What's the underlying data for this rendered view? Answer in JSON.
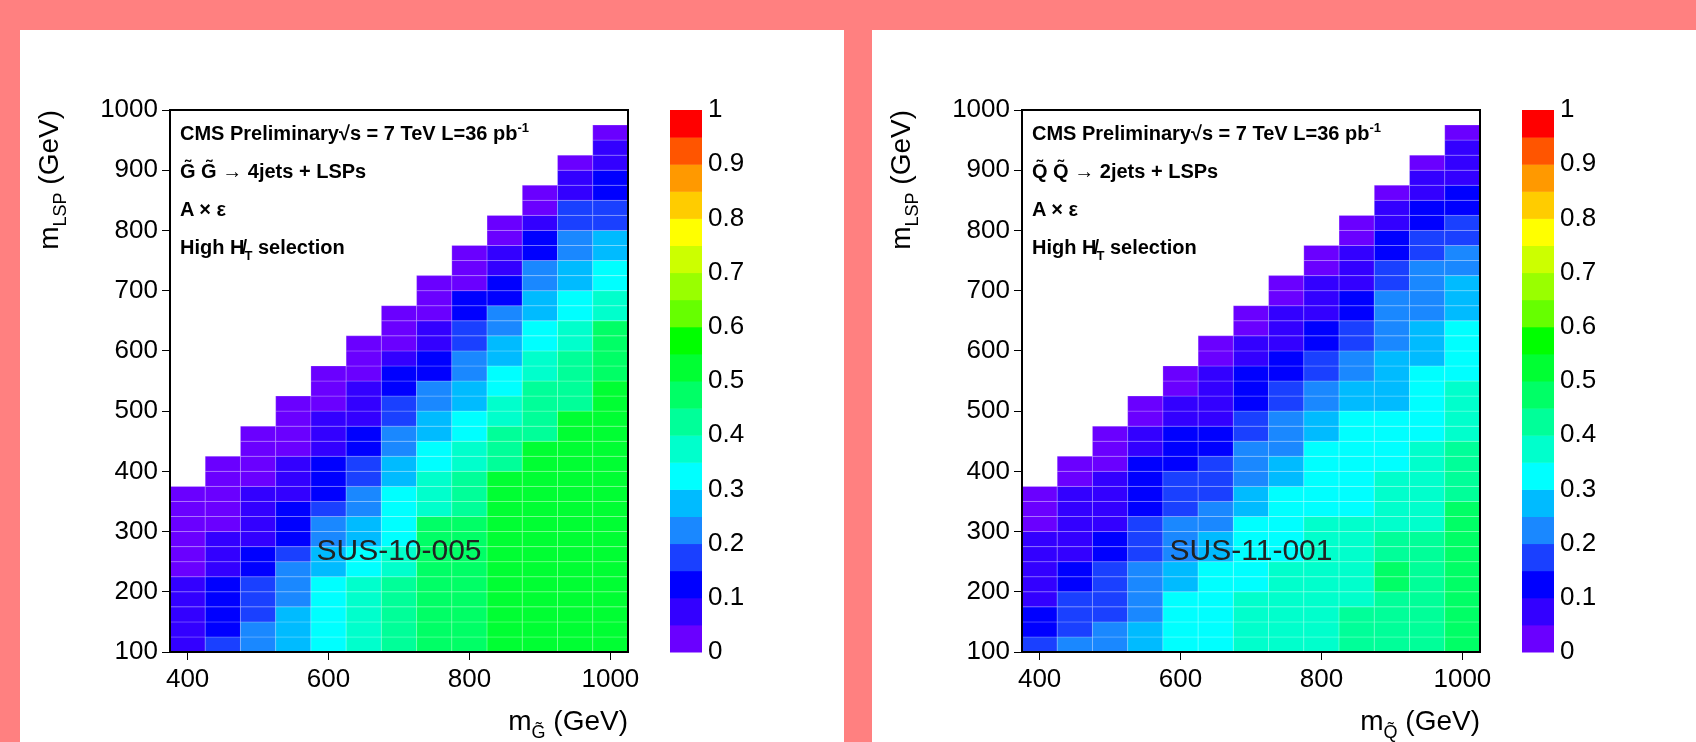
{
  "chart_data": [
    {
      "type": "scatter",
      "marker": "square",
      "xlabel": "m$_{G̃}$ (GeV)",
      "ylabel": "m$_{LSP}$ (GeV)",
      "annotations": [
        "CMS Preliminary√s = 7 TeV L=36 pb$^{-1}$",
        "G̃ G̃ → 4jets + LSPs",
        "A × ε",
        "High H̸$_{T}$ selection",
        "SUS-10-005"
      ],
      "xlim": [
        375,
        1025
      ],
      "ylim": [
        100,
        1000
      ],
      "xticks": [
        400,
        600,
        800,
        1000
      ],
      "yticks": [
        100,
        200,
        300,
        400,
        500,
        600,
        700,
        800,
        900,
        1000
      ],
      "clim": [
        0,
        1
      ],
      "cticks": [
        0,
        0.1,
        0.2,
        0.3,
        0.4,
        0.5,
        0.6,
        0.7,
        0.8,
        0.9,
        1
      ],
      "x": [
        400,
        400,
        400,
        400,
        400,
        400,
        400,
        400,
        400,
        400,
        400,
        450,
        450,
        450,
        450,
        450,
        450,
        450,
        450,
        450,
        450,
        450,
        450,
        450,
        500,
        500,
        500,
        500,
        500,
        500,
        500,
        500,
        500,
        500,
        500,
        500,
        500,
        500,
        500,
        550,
        550,
        550,
        550,
        550,
        550,
        550,
        550,
        550,
        550,
        550,
        550,
        550,
        550,
        550,
        550,
        550,
        600,
        600,
        600,
        600,
        600,
        600,
        600,
        600,
        600,
        600,
        600,
        600,
        600,
        600,
        600,
        600,
        600,
        600,
        600,
        650,
        650,
        650,
        650,
        650,
        650,
        650,
        650,
        650,
        650,
        650,
        650,
        650,
        650,
        650,
        650,
        650,
        650,
        650,
        650,
        650,
        700,
        700,
        700,
        700,
        700,
        700,
        700,
        700,
        700,
        700,
        700,
        700,
        700,
        700,
        700,
        700,
        700,
        700,
        700,
        700,
        700,
        700,
        700,
        750,
        750,
        750,
        750,
        750,
        750,
        750,
        750,
        750,
        750,
        750,
        750,
        750,
        750,
        750,
        750,
        750,
        750,
        750,
        750,
        750,
        750,
        750,
        750,
        750,
        800,
        800,
        800,
        800,
        800,
        800,
        800,
        800,
        800,
        800,
        800,
        800,
        800,
        800,
        800,
        800,
        800,
        800,
        800,
        800,
        800,
        800,
        800,
        800,
        800,
        800,
        800,
        850,
        850,
        850,
        850,
        850,
        850,
        850,
        850,
        850,
        850,
        850,
        850,
        850,
        850,
        850,
        850,
        850,
        850,
        850,
        850,
        850,
        850,
        850,
        850,
        850,
        850,
        850,
        850,
        850,
        900,
        900,
        900,
        900,
        900,
        900,
        900,
        900,
        900,
        900,
        900,
        900,
        900,
        900,
        900,
        900,
        900,
        900,
        900,
        900,
        900,
        900,
        900,
        900,
        900,
        900,
        900,
        900,
        900,
        900,
        900,
        950,
        950,
        950,
        950,
        950,
        950,
        950,
        950,
        950,
        950,
        950,
        950,
        950,
        950,
        950,
        950,
        950,
        950,
        950,
        950,
        950,
        950,
        950,
        950,
        950,
        950,
        950,
        950,
        950,
        950,
        950,
        950,
        950,
        1000,
        1000,
        1000,
        1000,
        1000,
        1000,
        1000,
        1000,
        1000,
        1000,
        1000,
        1000,
        1000,
        1000,
        1000,
        1000,
        1000,
        1000,
        1000,
        1000,
        1000,
        1000,
        1000,
        1000,
        1000,
        1000,
        1000,
        1000,
        1000,
        1000,
        1000,
        1000,
        1000,
        1000,
        1000
      ],
      "values": [
        112.5,
        137.5,
        162.5,
        187.5,
        212.5,
        237.5,
        262.5,
        287.5,
        312.5,
        337.5,
        362.5,
        112.5,
        137.5,
        162.5,
        187.5,
        212.5,
        237.5,
        262.5,
        287.5,
        312.5,
        337.5,
        362.5,
        387.5,
        412.5,
        112.5,
        137.5,
        162.5,
        187.5,
        212.5,
        237.5,
        262.5,
        287.5,
        312.5,
        337.5,
        362.5,
        387.5,
        412.5,
        437.5,
        462.5,
        112.5,
        137.5,
        162.5,
        187.5,
        212.5,
        237.5,
        262.5,
        287.5,
        312.5,
        337.5,
        362.5,
        387.5,
        412.5,
        437.5,
        462.5,
        487.5,
        512.5,
        112.5,
        137.5,
        162.5,
        187.5,
        212.5,
        237.5,
        262.5,
        287.5,
        312.5,
        337.5,
        362.5,
        387.5,
        412.5,
        437.5,
        462.5,
        487.5,
        512.5,
        537.5,
        562.5,
        112.5,
        137.5,
        162.5,
        187.5,
        212.5,
        237.5,
        262.5,
        287.5,
        312.5,
        337.5,
        362.5,
        387.5,
        412.5,
        437.5,
        462.5,
        487.5,
        512.5,
        537.5,
        562.5,
        587.5,
        612.5,
        112.5,
        137.5,
        162.5,
        187.5,
        212.5,
        237.5,
        262.5,
        287.5,
        312.5,
        337.5,
        362.5,
        387.5,
        412.5,
        437.5,
        462.5,
        487.5,
        512.5,
        537.5,
        562.5,
        587.5,
        612.5,
        637.5,
        662.5,
        112.5,
        137.5,
        162.5,
        187.5,
        212.5,
        237.5,
        262.5,
        287.5,
        312.5,
        337.5,
        362.5,
        387.5,
        412.5,
        437.5,
        462.5,
        487.5,
        512.5,
        537.5,
        562.5,
        587.5,
        612.5,
        637.5,
        662.5,
        687.5,
        712.5,
        112.5,
        137.5,
        162.5,
        187.5,
        212.5,
        237.5,
        262.5,
        287.5,
        312.5,
        337.5,
        362.5,
        387.5,
        412.5,
        437.5,
        462.5,
        487.5,
        512.5,
        537.5,
        562.5,
        587.5,
        612.5,
        637.5,
        662.5,
        687.5,
        712.5,
        737.5,
        762.5,
        112.5,
        137.5,
        162.5,
        187.5,
        212.5,
        237.5,
        262.5,
        287.5,
        312.5,
        337.5,
        362.5,
        387.5,
        412.5,
        437.5,
        462.5,
        487.5,
        512.5,
        537.5,
        562.5,
        587.5,
        612.5,
        637.5,
        662.5,
        687.5,
        712.5,
        737.5,
        762.5,
        787.5,
        812.5,
        112.5,
        137.5,
        162.5,
        187.5,
        212.5,
        237.5,
        262.5,
        287.5,
        312.5,
        337.5,
        362.5,
        387.5,
        412.5,
        437.5,
        462.5,
        487.5,
        512.5,
        537.5,
        562.5,
        587.5,
        612.5,
        637.5,
        662.5,
        687.5,
        712.5,
        737.5,
        762.5,
        787.5,
        812.5,
        837.5,
        862.5,
        112.5,
        137.5,
        162.5,
        187.5,
        212.5,
        237.5,
        262.5,
        287.5,
        312.5,
        337.5,
        362.5,
        387.5,
        412.5,
        437.5,
        462.5,
        487.5,
        512.5,
        537.5,
        562.5,
        587.5,
        612.5,
        637.5,
        662.5,
        687.5,
        712.5,
        737.5,
        762.5,
        787.5,
        812.5,
        837.5,
        862.5,
        887.5,
        912.5,
        112.5,
        137.5,
        162.5,
        187.5,
        212.5,
        237.5,
        262.5,
        287.5,
        312.5,
        337.5,
        362.5,
        387.5,
        412.5,
        437.5,
        462.5,
        487.5,
        512.5,
        537.5,
        562.5,
        587.5,
        612.5,
        637.5,
        662.5,
        687.5,
        712.5,
        737.5,
        762.5,
        787.5,
        812.5,
        837.5,
        862.5,
        887.5,
        912.5,
        937.5,
        962.5
      ],
      "cvalues": [
        0.075,
        0.075,
        0.075,
        0.075,
        0.075,
        0.025,
        0.025,
        0.025,
        0.025,
        0.025,
        0.025,
        0.175,
        0.125,
        0.125,
        0.125,
        0.125,
        0.075,
        0.075,
        0.075,
        0.025,
        0.025,
        0.025,
        0.025,
        0.025,
        0.225,
        0.225,
        0.175,
        0.175,
        0.175,
        0.125,
        0.125,
        0.075,
        0.075,
        0.075,
        0.075,
        0.025,
        0.025,
        0.025,
        0.025,
        0.275,
        0.275,
        0.275,
        0.225,
        0.225,
        0.225,
        0.175,
        0.125,
        0.125,
        0.125,
        0.075,
        0.075,
        0.075,
        0.025,
        0.025,
        0.025,
        0.025,
        0.325,
        0.325,
        0.325,
        0.325,
        0.325,
        0.275,
        0.275,
        0.225,
        0.225,
        0.175,
        0.125,
        0.125,
        0.125,
        0.075,
        0.075,
        0.075,
        0.025,
        0.025,
        0.025,
        0.375,
        0.375,
        0.375,
        0.375,
        0.375,
        0.325,
        0.325,
        0.275,
        0.275,
        0.225,
        0.225,
        0.175,
        0.175,
        0.125,
        0.125,
        0.075,
        0.075,
        0.075,
        0.025,
        0.025,
        0.025,
        0.425,
        0.425,
        0.425,
        0.425,
        0.425,
        0.375,
        0.375,
        0.325,
        0.325,
        0.325,
        0.325,
        0.275,
        0.275,
        0.225,
        0.225,
        0.175,
        0.175,
        0.125,
        0.125,
        0.075,
        0.025,
        0.025,
        0.025,
        0.475,
        0.475,
        0.475,
        0.475,
        0.475,
        0.475,
        0.475,
        0.475,
        0.475,
        0.375,
        0.375,
        0.375,
        0.325,
        0.325,
        0.275,
        0.275,
        0.225,
        0.225,
        0.125,
        0.125,
        0.075,
        0.075,
        0.025,
        0.025,
        0.025,
        0.475,
        0.475,
        0.475,
        0.475,
        0.475,
        0.475,
        0.475,
        0.475,
        0.475,
        0.425,
        0.425,
        0.425,
        0.375,
        0.375,
        0.325,
        0.325,
        0.275,
        0.275,
        0.225,
        0.225,
        0.175,
        0.175,
        0.125,
        0.125,
        0.025,
        0.025,
        0.025,
        0.525,
        0.525,
        0.525,
        0.525,
        0.525,
        0.525,
        0.525,
        0.525,
        0.525,
        0.525,
        0.525,
        0.525,
        0.425,
        0.425,
        0.425,
        0.375,
        0.375,
        0.325,
        0.325,
        0.275,
        0.275,
        0.225,
        0.225,
        0.125,
        0.125,
        0.075,
        0.075,
        0.025,
        0.025,
        0.525,
        0.525,
        0.525,
        0.525,
        0.525,
        0.525,
        0.525,
        0.525,
        0.525,
        0.525,
        0.525,
        0.525,
        0.525,
        0.525,
        0.425,
        0.425,
        0.425,
        0.425,
        0.375,
        0.375,
        0.325,
        0.325,
        0.275,
        0.275,
        0.225,
        0.225,
        0.125,
        0.125,
        0.075,
        0.025,
        0.025,
        0.525,
        0.525,
        0.525,
        0.525,
        0.525,
        0.525,
        0.525,
        0.525,
        0.525,
        0.525,
        0.525,
        0.525,
        0.525,
        0.525,
        0.525,
        0.525,
        0.425,
        0.425,
        0.425,
        0.425,
        0.375,
        0.375,
        0.325,
        0.325,
        0.275,
        0.275,
        0.225,
        0.225,
        0.175,
        0.175,
        0.075,
        0.075,
        0.025,
        0.525,
        0.525,
        0.525,
        0.525,
        0.525,
        0.525,
        0.525,
        0.525,
        0.525,
        0.525,
        0.525,
        0.525,
        0.525,
        0.525,
        0.525,
        0.525,
        0.525,
        0.525,
        0.475,
        0.475,
        0.475,
        0.475,
        0.375,
        0.375,
        0.325,
        0.325,
        0.275,
        0.275,
        0.175,
        0.175,
        0.125,
        0.125,
        0.075,
        0.075,
        0.025
      ]
    },
    {
      "type": "scatter",
      "marker": "square",
      "xlabel": "m$_{Q̃}$ (GeV)",
      "ylabel": "m$_{LSP}$ (GeV)",
      "annotations": [
        "CMS Preliminary√s = 7 TeV L=36 pb$^{-1}$",
        "Q̃ Q̃ → 2jets + LSPs",
        "A × ε",
        "High H̸$_{T}$ selection",
        "SUS-11-001"
      ],
      "xlim": [
        375,
        1025
      ],
      "ylim": [
        100,
        1000
      ],
      "xticks": [
        400,
        600,
        800,
        1000
      ],
      "yticks": [
        100,
        200,
        300,
        400,
        500,
        600,
        700,
        800,
        900,
        1000
      ],
      "clim": [
        0,
        1
      ],
      "cticks": [
        0,
        0.1,
        0.2,
        0.3,
        0.4,
        0.5,
        0.6,
        0.7,
        0.8,
        0.9,
        1
      ],
      "x": [
        400,
        400,
        400,
        400,
        400,
        400,
        400,
        400,
        400,
        400,
        400,
        450,
        450,
        450,
        450,
        450,
        450,
        450,
        450,
        450,
        450,
        450,
        450,
        450,
        500,
        500,
        500,
        500,
        500,
        500,
        500,
        500,
        500,
        500,
        500,
        500,
        500,
        500,
        500,
        550,
        550,
        550,
        550,
        550,
        550,
        550,
        550,
        550,
        550,
        550,
        550,
        550,
        550,
        550,
        550,
        550,
        600,
        600,
        600,
        600,
        600,
        600,
        600,
        600,
        600,
        600,
        600,
        600,
        600,
        600,
        600,
        600,
        600,
        600,
        600,
        650,
        650,
        650,
        650,
        650,
        650,
        650,
        650,
        650,
        650,
        650,
        650,
        650,
        650,
        650,
        650,
        650,
        650,
        650,
        650,
        650,
        700,
        700,
        700,
        700,
        700,
        700,
        700,
        700,
        700,
        700,
        700,
        700,
        700,
        700,
        700,
        700,
        700,
        700,
        700,
        700,
        700,
        700,
        700,
        750,
        750,
        750,
        750,
        750,
        750,
        750,
        750,
        750,
        750,
        750,
        750,
        750,
        750,
        750,
        750,
        750,
        750,
        750,
        750,
        750,
        750,
        750,
        750,
        750,
        800,
        800,
        800,
        800,
        800,
        800,
        800,
        800,
        800,
        800,
        800,
        800,
        800,
        800,
        800,
        800,
        800,
        800,
        800,
        800,
        800,
        800,
        800,
        800,
        800,
        800,
        800,
        850,
        850,
        850,
        850,
        850,
        850,
        850,
        850,
        850,
        850,
        850,
        850,
        850,
        850,
        850,
        850,
        850,
        850,
        850,
        850,
        850,
        850,
        850,
        850,
        850,
        850,
        850,
        850,
        850,
        900,
        900,
        900,
        900,
        900,
        900,
        900,
        900,
        900,
        900,
        900,
        900,
        900,
        900,
        900,
        900,
        900,
        900,
        900,
        900,
        900,
        900,
        900,
        900,
        900,
        900,
        900,
        900,
        900,
        900,
        900,
        950,
        950,
        950,
        950,
        950,
        950,
        950,
        950,
        950,
        950,
        950,
        950,
        950,
        950,
        950,
        950,
        950,
        950,
        950,
        950,
        950,
        950,
        950,
        950,
        950,
        950,
        950,
        950,
        950,
        950,
        950,
        950,
        950,
        1000,
        1000,
        1000,
        1000,
        1000,
        1000,
        1000,
        1000,
        1000,
        1000,
        1000,
        1000,
        1000,
        1000,
        1000,
        1000,
        1000,
        1000,
        1000,
        1000,
        1000,
        1000,
        1000,
        1000,
        1000,
        1000,
        1000,
        1000,
        1000,
        1000,
        1000,
        1000,
        1000,
        1000,
        1000
      ],
      "values": [
        112.5,
        137.5,
        162.5,
        187.5,
        212.5,
        237.5,
        262.5,
        287.5,
        312.5,
        337.5,
        362.5,
        112.5,
        137.5,
        162.5,
        187.5,
        212.5,
        237.5,
        262.5,
        287.5,
        312.5,
        337.5,
        362.5,
        387.5,
        412.5,
        112.5,
        137.5,
        162.5,
        187.5,
        212.5,
        237.5,
        262.5,
        287.5,
        312.5,
        337.5,
        362.5,
        387.5,
        412.5,
        437.5,
        462.5,
        112.5,
        137.5,
        162.5,
        187.5,
        212.5,
        237.5,
        262.5,
        287.5,
        312.5,
        337.5,
        362.5,
        387.5,
        412.5,
        437.5,
        462.5,
        487.5,
        512.5,
        112.5,
        137.5,
        162.5,
        187.5,
        212.5,
        237.5,
        262.5,
        287.5,
        312.5,
        337.5,
        362.5,
        387.5,
        412.5,
        437.5,
        462.5,
        487.5,
        512.5,
        537.5,
        562.5,
        112.5,
        137.5,
        162.5,
        187.5,
        212.5,
        237.5,
        262.5,
        287.5,
        312.5,
        337.5,
        362.5,
        387.5,
        412.5,
        437.5,
        462.5,
        487.5,
        512.5,
        537.5,
        562.5,
        587.5,
        612.5,
        112.5,
        137.5,
        162.5,
        187.5,
        212.5,
        237.5,
        262.5,
        287.5,
        312.5,
        337.5,
        362.5,
        387.5,
        412.5,
        437.5,
        462.5,
        487.5,
        512.5,
        537.5,
        562.5,
        587.5,
        612.5,
        637.5,
        662.5,
        112.5,
        137.5,
        162.5,
        187.5,
        212.5,
        237.5,
        262.5,
        287.5,
        312.5,
        337.5,
        362.5,
        387.5,
        412.5,
        437.5,
        462.5,
        487.5,
        512.5,
        537.5,
        562.5,
        587.5,
        612.5,
        637.5,
        662.5,
        687.5,
        712.5,
        112.5,
        137.5,
        162.5,
        187.5,
        212.5,
        237.5,
        262.5,
        287.5,
        312.5,
        337.5,
        362.5,
        387.5,
        412.5,
        437.5,
        462.5,
        487.5,
        512.5,
        537.5,
        562.5,
        587.5,
        612.5,
        637.5,
        662.5,
        687.5,
        712.5,
        737.5,
        762.5,
        112.5,
        137.5,
        162.5,
        187.5,
        212.5,
        237.5,
        262.5,
        287.5,
        312.5,
        337.5,
        362.5,
        387.5,
        412.5,
        437.5,
        462.5,
        487.5,
        512.5,
        537.5,
        562.5,
        587.5,
        612.5,
        637.5,
        662.5,
        687.5,
        712.5,
        737.5,
        762.5,
        787.5,
        812.5,
        112.5,
        137.5,
        162.5,
        187.5,
        212.5,
        237.5,
        262.5,
        287.5,
        312.5,
        337.5,
        362.5,
        387.5,
        412.5,
        437.5,
        462.5,
        487.5,
        512.5,
        537.5,
        562.5,
        587.5,
        612.5,
        637.5,
        662.5,
        687.5,
        712.5,
        737.5,
        762.5,
        787.5,
        812.5,
        837.5,
        862.5,
        112.5,
        137.5,
        162.5,
        187.5,
        212.5,
        237.5,
        262.5,
        287.5,
        312.5,
        337.5,
        362.5,
        387.5,
        412.5,
        437.5,
        462.5,
        487.5,
        512.5,
        537.5,
        562.5,
        587.5,
        612.5,
        637.5,
        662.5,
        687.5,
        712.5,
        737.5,
        762.5,
        787.5,
        812.5,
        837.5,
        862.5,
        887.5,
        912.5,
        112.5,
        137.5,
        162.5,
        187.5,
        212.5,
        237.5,
        262.5,
        287.5,
        312.5,
        337.5,
        362.5,
        387.5,
        412.5,
        437.5,
        462.5,
        487.5,
        512.5,
        537.5,
        562.5,
        587.5,
        612.5,
        637.5,
        662.5,
        687.5,
        712.5,
        737.5,
        762.5,
        787.5,
        812.5,
        837.5,
        862.5,
        887.5,
        912.5,
        937.5,
        962.5
      ],
      "cvalues": [
        0.175,
        0.125,
        0.125,
        0.075,
        0.075,
        0.075,
        0.075,
        0.075,
        0.025,
        0.025,
        0.025,
        0.225,
        0.175,
        0.175,
        0.175,
        0.125,
        0.125,
        0.075,
        0.075,
        0.075,
        0.075,
        0.075,
        0.025,
        0.025,
        0.225,
        0.225,
        0.175,
        0.175,
        0.175,
        0.175,
        0.125,
        0.125,
        0.075,
        0.075,
        0.075,
        0.075,
        0.025,
        0.025,
        0.025,
        0.275,
        0.275,
        0.225,
        0.225,
        0.225,
        0.225,
        0.175,
        0.175,
        0.175,
        0.125,
        0.125,
        0.125,
        0.125,
        0.075,
        0.075,
        0.025,
        0.025,
        0.325,
        0.325,
        0.325,
        0.325,
        0.275,
        0.275,
        0.225,
        0.225,
        0.225,
        0.175,
        0.175,
        0.175,
        0.125,
        0.125,
        0.125,
        0.075,
        0.075,
        0.025,
        0.025,
        0.325,
        0.325,
        0.325,
        0.325,
        0.325,
        0.325,
        0.275,
        0.275,
        0.225,
        0.225,
        0.175,
        0.175,
        0.175,
        0.125,
        0.125,
        0.075,
        0.075,
        0.075,
        0.075,
        0.025,
        0.025,
        0.375,
        0.375,
        0.375,
        0.375,
        0.325,
        0.325,
        0.325,
        0.325,
        0.325,
        0.275,
        0.275,
        0.225,
        0.225,
        0.225,
        0.175,
        0.175,
        0.125,
        0.125,
        0.125,
        0.075,
        0.075,
        0.025,
        0.025,
        0.375,
        0.375,
        0.375,
        0.375,
        0.375,
        0.375,
        0.325,
        0.325,
        0.325,
        0.325,
        0.325,
        0.275,
        0.275,
        0.225,
        0.225,
        0.225,
        0.175,
        0.175,
        0.125,
        0.125,
        0.075,
        0.075,
        0.075,
        0.025,
        0.025,
        0.375,
        0.375,
        0.375,
        0.375,
        0.375,
        0.375,
        0.375,
        0.375,
        0.375,
        0.325,
        0.325,
        0.325,
        0.325,
        0.325,
        0.275,
        0.275,
        0.225,
        0.225,
        0.175,
        0.175,
        0.125,
        0.125,
        0.075,
        0.075,
        0.075,
        0.025,
        0.025,
        0.425,
        0.425,
        0.425,
        0.375,
        0.375,
        0.375,
        0.375,
        0.375,
        0.375,
        0.325,
        0.325,
        0.325,
        0.325,
        0.325,
        0.325,
        0.325,
        0.275,
        0.275,
        0.225,
        0.225,
        0.175,
        0.175,
        0.125,
        0.125,
        0.075,
        0.075,
        0.075,
        0.025,
        0.025,
        0.425,
        0.425,
        0.425,
        0.425,
        0.475,
        0.475,
        0.425,
        0.425,
        0.375,
        0.375,
        0.375,
        0.375,
        0.325,
        0.325,
        0.325,
        0.325,
        0.275,
        0.275,
        0.275,
        0.275,
        0.225,
        0.225,
        0.225,
        0.225,
        0.175,
        0.175,
        0.125,
        0.125,
        0.075,
        0.075,
        0.025,
        0.425,
        0.425,
        0.425,
        0.425,
        0.425,
        0.425,
        0.425,
        0.425,
        0.375,
        0.375,
        0.375,
        0.375,
        0.375,
        0.375,
        0.325,
        0.325,
        0.325,
        0.325,
        0.325,
        0.275,
        0.275,
        0.275,
        0.225,
        0.225,
        0.225,
        0.225,
        0.175,
        0.175,
        0.125,
        0.125,
        0.075,
        0.075,
        0.025,
        0.475,
        0.475,
        0.475,
        0.475,
        0.475,
        0.475,
        0.475,
        0.475,
        0.475,
        0.475,
        0.425,
        0.425,
        0.425,
        0.425,
        0.375,
        0.375,
        0.375,
        0.375,
        0.325,
        0.325,
        0.325,
        0.325,
        0.275,
        0.275,
        0.275,
        0.225,
        0.225,
        0.175,
        0.175,
        0.125,
        0.125,
        0.075,
        0.075,
        0.075,
        0.025
      ]
    }
  ]
}
